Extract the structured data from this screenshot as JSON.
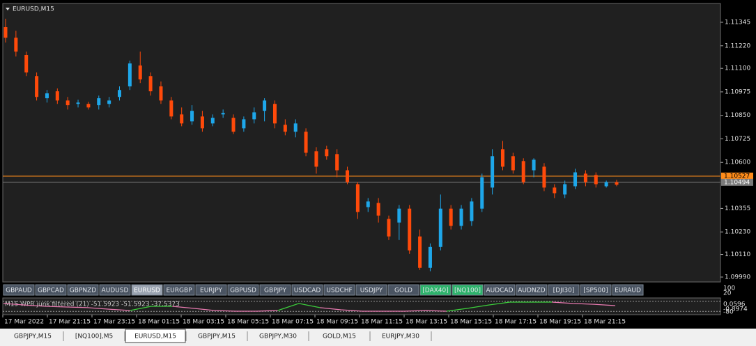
{
  "chart_data": {
    "type": "candlestick",
    "title": "EURUSD,M15",
    "up_color": "#1ea7ea",
    "down_color": "#ff4a0a",
    "ylim": [
      1.09964,
      1.11445
    ],
    "yticks": [
      1.11345,
      {
        "value": 1.1122,
        "label": "1.11220"
      },
      {
        "value": 1.111,
        "label": "1.11100"
      },
      1.10975,
      {
        "value": 1.1085,
        "label": "1.10850"
      },
      1.10725,
      {
        "value": 1.106,
        "label": "1.10600"
      },
      1.10355,
      {
        "value": 1.1023,
        "label": "1.10230"
      },
      {
        "value": 1.1011,
        "label": "1.10110"
      },
      {
        "value": 1.0999,
        "label": "1.09990"
      }
    ],
    "price_lines": [
      {
        "value": 1.10527,
        "color": "#ff8c1a"
      },
      {
        "value": 1.10494,
        "color": "#7a7a7a"
      }
    ],
    "open": [
      1.11319,
      1.11263,
      1.11171,
      1.11059,
      1.10941,
      1.10978,
      1.10929,
      1.10911,
      1.10911,
      1.10904,
      1.10911,
      1.10948,
      1.11004,
      1.11115,
      1.11059,
      1.11004,
      1.10929,
      1.10855,
      1.10818,
      1.10844,
      1.10807,
      1.10855,
      1.10837,
      1.10781,
      1.10829,
      1.10874,
      1.10911,
      1.108,
      1.10763,
      1.10763,
      1.10659,
      1.1067,
      1.10644,
      1.10558,
      1.10484,
      1.10362,
      1.10384,
      1.10299,
      1.1028,
      1.10354,
      1.10206,
      1.10039,
      1.1015,
      1.10354,
      1.10262,
      1.10288,
      1.10354,
      1.10466,
      1.1067,
      1.10633,
      1.10607,
      1.10558,
      1.10577,
      1.10466,
      1.10429,
      1.10473,
      1.1054,
      1.10533,
      1.10473,
      1.10495
    ],
    "high": [
      1.11364,
      1.113,
      1.11189,
      1.11078,
      1.10985,
      1.10993,
      1.10948,
      1.10933,
      1.10922,
      1.10955,
      1.10948,
      1.11004,
      1.11141,
      1.11189,
      1.11078,
      1.1103,
      1.10948,
      1.10892,
      1.10904,
      1.10874,
      1.10855,
      1.10881,
      1.10855,
      1.10844,
      1.10892,
      1.10941,
      1.10929,
      1.10829,
      1.10829,
      1.10781,
      1.10681,
      1.10688,
      1.1067,
      1.10577,
      1.10495,
      1.1041,
      1.1041,
      1.10317,
      1.10373,
      1.10373,
      1.10243,
      1.10169,
      1.10429,
      1.10373,
      1.10373,
      1.1041,
      1.1054,
      1.1067,
      1.10714,
      1.10651,
      1.10622,
      1.10622,
      1.10596,
      1.10484,
      1.10503,
      1.10566,
      1.10558,
      1.10547,
      1.10503,
      1.10507
    ],
    "low": [
      1.11237,
      1.11163,
      1.11059,
      1.10929,
      1.10918,
      1.10911,
      1.10881,
      1.10892,
      1.10881,
      1.10881,
      1.10892,
      1.10929,
      1.10985,
      1.11022,
      1.10955,
      1.10911,
      1.10829,
      1.10792,
      1.108,
      1.10763,
      1.10792,
      1.10837,
      1.10751,
      1.10763,
      1.10807,
      1.10818,
      1.10781,
      1.10744,
      1.10733,
      1.10633,
      1.1054,
      1.10614,
      1.10521,
      1.10484,
      1.10299,
      1.10336,
      1.1028,
      1.10187,
      1.10187,
      1.10113,
      1.10028,
      1.10021,
      1.10132,
      1.10243,
      1.10243,
      1.10262,
      1.10336,
      1.10429,
      1.10558,
      1.1054,
      1.10484,
      1.10521,
      1.10447,
      1.1041,
      1.1041,
      1.10458,
      1.10473,
      1.10466,
      1.10466,
      1.10473
    ],
    "close": [
      1.11263,
      1.11189,
      1.11078,
      1.10948,
      1.10967,
      1.10929,
      1.10904,
      1.10918,
      1.10892,
      1.10941,
      1.10929,
      1.10985,
      1.11126,
      1.11041,
      1.10978,
      1.10929,
      1.10844,
      1.10807,
      1.10874,
      1.10781,
      1.10837,
      1.10863,
      1.10763,
      1.10829,
      1.10866,
      1.10929,
      1.10807,
      1.10763,
      1.10807,
      1.10651,
      1.10577,
      1.10633,
      1.10558,
      1.10495,
      1.10336,
      1.10392,
      1.10317,
      1.10206,
      1.10354,
      1.10132,
      1.10039,
      1.1015,
      1.10354,
      1.10262,
      1.10354,
      1.10392,
      1.10521,
      1.10633,
      1.10577,
      1.10558,
      1.10495,
      1.10614,
      1.10466,
      1.10436,
      1.10484,
      1.10547,
      1.10495,
      1.10484,
      1.10495,
      1.10481
    ],
    "time_labels": [
      "17 Mar 2022",
      "17 Mar 21:15",
      "17 Mar 23:15",
      "18 Mar 01:15",
      "18 Mar 03:15",
      "18 Mar 05:15",
      "18 Mar 07:15",
      "18 Mar 09:15",
      "18 Mar 11:15",
      "18 Mar 13:15",
      "18 Mar 15:15",
      "18 Mar 17:15",
      "18 Mar 19:15",
      "18 Mar 21:15"
    ],
    "indicator": {
      "title": "M15  WPR junk filtered (21) -51.5923 -51.5923 -37.5373",
      "ylim": [
        -100,
        0
      ],
      "levels": [
        -20,
        -80
      ],
      "axis_labels": [
        "100",
        "20",
        "0.0596",
        "-0.8974",
        "-80"
      ],
      "series": [
        {
          "color": "#e87ab0",
          "values": [
            -33,
            -42,
            -50,
            -54,
            -58,
            -67,
            -75,
            null,
            -50,
            -62,
            -75,
            -79,
            -79,
            -75,
            null,
            -58,
            -71,
            -79,
            -79,
            -79,
            -75,
            -79,
            null,
            null,
            null,
            null,
            -25,
            -33,
            -38,
            -46
          ]
        },
        {
          "color": "#3ccf3c",
          "values": [
            null,
            null,
            null,
            null,
            null,
            null,
            -75,
            -50,
            -50,
            null,
            null,
            null,
            null,
            -75,
            -33,
            -58,
            null,
            null,
            null,
            null,
            null,
            -79,
            -62,
            -42,
            -25,
            -25,
            -25,
            null,
            null,
            null
          ]
        }
      ]
    }
  },
  "symbols": [
    {
      "label": "GBPAUD",
      "style": "normal"
    },
    {
      "label": "GBPCAD",
      "style": "normal"
    },
    {
      "label": "GBPNZD",
      "style": "normal"
    },
    {
      "label": "AUDUSD",
      "style": "normal"
    },
    {
      "label": "EURUSD",
      "style": "active"
    },
    {
      "label": "EURGBP",
      "style": "normal"
    },
    {
      "label": "EURJPY",
      "style": "normal"
    },
    {
      "label": "GBPUSD",
      "style": "normal"
    },
    {
      "label": "GBPJPY",
      "style": "normal"
    },
    {
      "label": "USDCAD",
      "style": "normal"
    },
    {
      "label": "USDCHF",
      "style": "normal"
    },
    {
      "label": "USDJPY",
      "style": "normal"
    },
    {
      "label": "GOLD",
      "style": "normal"
    },
    {
      "label": "[DAX40]",
      "style": "green"
    },
    {
      "label": "[NQ100]",
      "style": "green"
    },
    {
      "label": "AUDCAD",
      "style": "normal"
    },
    {
      "label": "AUDNZD",
      "style": "normal"
    },
    {
      "label": "[DJI30]",
      "style": "normal"
    },
    {
      "label": "[SP500]",
      "style": "normal"
    },
    {
      "label": "EURAUD",
      "style": "normal"
    }
  ],
  "tabs": [
    "GBPJPY,M15",
    "[NQ100],M5",
    "EURUSD,M15",
    "GBPJPY,M15",
    "GBPJPY,M30",
    "GOLD,M15",
    "EURJPY,M30"
  ],
  "active_tab": 2
}
